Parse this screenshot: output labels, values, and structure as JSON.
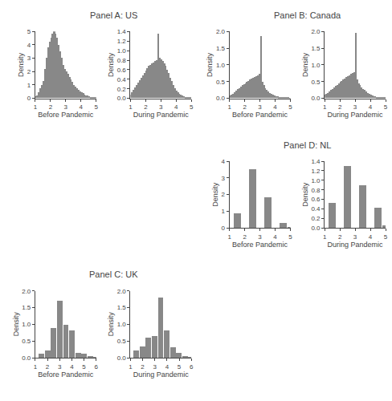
{
  "chart_data": [
    {
      "title": "Panel A: US",
      "charts": [
        {
          "type": "bar",
          "x_label": "Before Pandemic",
          "y_label": "Density",
          "color": "#888888",
          "grid": false,
          "xlim": [
            1,
            5
          ],
          "ylim": [
            0,
            5
          ],
          "xticks": [
            1,
            2,
            3,
            4,
            5
          ],
          "yticks": [
            0,
            1,
            2,
            3,
            4,
            5
          ],
          "x": [
            1.05,
            1.15,
            1.25,
            1.35,
            1.45,
            1.55,
            1.65,
            1.75,
            1.85,
            1.95,
            2.05,
            2.15,
            2.25,
            2.35,
            2.45,
            2.55,
            2.65,
            2.75,
            2.85,
            2.95,
            3.05,
            3.15,
            3.25,
            3.35,
            3.45,
            3.55,
            3.65,
            3.75,
            3.85,
            3.95,
            4.05,
            4.15,
            4.25,
            4.35,
            4.45,
            4.55,
            4.65,
            4.75,
            4.85,
            4.95
          ],
          "values": [
            0.12,
            0.22,
            0.45,
            0.75,
            1.0,
            1.3,
            2.2,
            3.0,
            3.8,
            4.2,
            4.5,
            4.8,
            5.0,
            4.8,
            4.5,
            4.0,
            3.5,
            3.0,
            2.5,
            2.2,
            2.0,
            1.8,
            1.6,
            1.4,
            1.2,
            1.0,
            0.85,
            0.72,
            0.6,
            0.5,
            0.42,
            0.35,
            0.28,
            0.22,
            0.17,
            0.13,
            0.1,
            0.07,
            0.05,
            0.03
          ]
        },
        {
          "type": "bar",
          "x_label": "During Pandemic",
          "y_label": "Density",
          "color": "#888888",
          "grid": false,
          "xlim": [
            1,
            5
          ],
          "ylim": [
            0,
            1.4
          ],
          "xticks": [
            1,
            2,
            3,
            4,
            5
          ],
          "yticks": [
            {
              "value": 0,
              "label": "0.0"
            },
            0.2,
            0.4,
            0.6,
            0.8,
            {
              "value": 1.0,
              "label": "1.0"
            },
            1.2,
            1.4
          ],
          "x": [
            1.05,
            1.15,
            1.25,
            1.35,
            1.45,
            1.55,
            1.65,
            1.75,
            1.85,
            1.95,
            2.05,
            2.15,
            2.25,
            2.35,
            2.45,
            2.55,
            2.65,
            2.75,
            2.85,
            2.95,
            3.05,
            3.15,
            3.25,
            3.35,
            3.45,
            3.55,
            3.65,
            3.75,
            3.85,
            3.95,
            4.05,
            4.15,
            4.25,
            4.35,
            4.45,
            4.55,
            4.65,
            4.75,
            4.85,
            4.95
          ],
          "values": [
            0.08,
            0.12,
            0.17,
            0.22,
            0.27,
            0.32,
            0.37,
            0.42,
            0.47,
            0.52,
            0.57,
            0.62,
            0.67,
            0.7,
            0.72,
            0.75,
            0.77,
            0.8,
            1.35,
            0.85,
            0.82,
            0.78,
            0.73,
            0.67,
            0.6,
            0.52,
            0.43,
            0.35,
            0.27,
            0.21,
            0.16,
            0.12,
            0.09,
            0.07,
            0.05,
            0.04,
            0.03,
            0.02,
            0.015,
            0.01
          ]
        }
      ]
    },
    {
      "title": "Panel B: Canada",
      "charts": [
        {
          "type": "bar",
          "x_label": "Before Pandemic",
          "y_label": "Density",
          "color": "#888888",
          "grid": false,
          "xlim": [
            1,
            5
          ],
          "ylim": [
            0,
            2
          ],
          "xticks": [
            1,
            2,
            3,
            4,
            5
          ],
          "yticks": [
            {
              "value": 0,
              "label": "0.0"
            },
            0.5,
            {
              "value": 1.0,
              "label": "1.0"
            },
            1.5,
            {
              "value": 2.0,
              "label": "2.0"
            }
          ],
          "x": [
            1.05,
            1.15,
            1.25,
            1.35,
            1.45,
            1.55,
            1.65,
            1.75,
            1.85,
            1.95,
            2.05,
            2.15,
            2.25,
            2.35,
            2.45,
            2.55,
            2.65,
            2.75,
            2.85,
            2.95,
            3.05,
            3.15,
            3.25,
            3.35,
            3.45,
            3.55,
            3.65,
            3.75,
            3.85,
            3.95,
            4.05,
            4.15,
            4.25,
            4.35,
            4.45,
            4.55,
            4.65,
            4.75,
            4.85,
            4.95
          ],
          "values": [
            0.08,
            0.1,
            0.13,
            0.18,
            0.22,
            0.27,
            0.3,
            0.35,
            0.38,
            0.42,
            0.45,
            0.48,
            0.52,
            0.55,
            0.58,
            0.6,
            0.62,
            0.65,
            0.68,
            0.72,
            1.85,
            0.48,
            0.38,
            0.3,
            0.24,
            0.19,
            0.15,
            0.12,
            0.1,
            0.08,
            0.06,
            0.05,
            0.04,
            0.03,
            0.025,
            0.02,
            0.015,
            0.01,
            0.008,
            0.005
          ]
        },
        {
          "type": "bar",
          "x_label": "During Pandemic",
          "y_label": "Density",
          "color": "#888888",
          "grid": false,
          "xlim": [
            1,
            5
          ],
          "ylim": [
            0,
            2
          ],
          "xticks": [
            1,
            2,
            3,
            4,
            5
          ],
          "yticks": [
            {
              "value": 0,
              "label": "0.0"
            },
            0.5,
            {
              "value": 1.0,
              "label": "1.0"
            },
            1.5,
            {
              "value": 2.0,
              "label": "2.0"
            }
          ],
          "x": [
            1.05,
            1.15,
            1.25,
            1.35,
            1.45,
            1.55,
            1.65,
            1.75,
            1.85,
            1.95,
            2.05,
            2.15,
            2.25,
            2.35,
            2.45,
            2.55,
            2.65,
            2.75,
            2.85,
            2.95,
            3.05,
            3.15,
            3.25,
            3.35,
            3.45,
            3.55,
            3.65,
            3.75,
            3.85,
            3.95,
            4.05,
            4.15,
            4.25,
            4.35,
            4.45,
            4.55,
            4.65,
            4.75,
            4.85,
            4.95
          ],
          "values": [
            0.1,
            0.13,
            0.16,
            0.2,
            0.24,
            0.28,
            0.32,
            0.36,
            0.4,
            0.44,
            0.48,
            0.52,
            0.55,
            0.58,
            0.62,
            0.65,
            0.68,
            0.72,
            0.75,
            0.78,
            1.95,
            0.55,
            0.45,
            0.38,
            0.32,
            0.28,
            0.24,
            0.2,
            0.16,
            0.13,
            0.1,
            0.08,
            0.06,
            0.05,
            0.04,
            0.03,
            0.025,
            0.02,
            0.015,
            0.01
          ]
        }
      ]
    },
    {
      "title": "Panel D: NL",
      "charts": [
        {
          "type": "bar",
          "x_label": "Before Pandemic",
          "y_label": "Density",
          "color": "#888888",
          "grid": false,
          "xlim": [
            1,
            5
          ],
          "ylim": [
            0,
            4
          ],
          "xticks": [
            1,
            2,
            3,
            4,
            5
          ],
          "yticks": [
            0,
            1,
            2,
            3,
            4
          ],
          "x": [
            1.5,
            2.5,
            3.5,
            4.5,
            5.0
          ],
          "values": [
            0.9,
            3.5,
            1.85,
            0.28,
            0.05
          ]
        },
        {
          "type": "bar",
          "x_label": "During Pandemic",
          "y_label": "Density",
          "color": "#888888",
          "grid": false,
          "xlim": [
            1,
            5
          ],
          "ylim": [
            0,
            1.4
          ],
          "xticks": [
            1,
            2,
            3,
            4,
            5
          ],
          "yticks": [
            {
              "value": 0,
              "label": "0.0"
            },
            0.2,
            0.4,
            0.6,
            0.8,
            {
              "value": 1.0,
              "label": "1.0"
            },
            1.2,
            1.4
          ],
          "x": [
            1.5,
            2.5,
            3.5,
            4.5,
            5.0
          ],
          "values": [
            0.52,
            1.3,
            0.9,
            0.42,
            0.06
          ]
        }
      ]
    },
    {
      "title": "Panel C: UK",
      "charts": [
        {
          "type": "bar",
          "x_label": "Before Pandemic",
          "y_label": "Density",
          "color": "#888888",
          "grid": false,
          "xlim": [
            1,
            6
          ],
          "ylim": [
            0,
            2
          ],
          "xticks": [
            1,
            2,
            3,
            4,
            5,
            6
          ],
          "yticks": [
            {
              "value": 0,
              "label": "0.0"
            },
            0.5,
            {
              "value": 1.0,
              "label": "1.0"
            },
            1.5,
            {
              "value": 2.0,
              "label": "2.0"
            }
          ],
          "x": [
            1.5,
            2.0,
            2.5,
            3.0,
            3.5,
            4.0,
            4.5,
            5.0,
            5.5,
            6.0
          ],
          "values": [
            0.12,
            0.22,
            0.9,
            1.72,
            1.0,
            0.82,
            0.15,
            0.12,
            0.05,
            0.02
          ]
        },
        {
          "type": "bar",
          "x_label": "During Pandemic",
          "y_label": "Density",
          "color": "#888888",
          "grid": false,
          "xlim": [
            1,
            6
          ],
          "ylim": [
            0,
            2
          ],
          "xticks": [
            1,
            2,
            3,
            4,
            5,
            6
          ],
          "yticks": [
            {
              "value": 0,
              "label": "0.0"
            },
            0.5,
            {
              "value": 1.0,
              "label": "1.0"
            },
            1.5,
            {
              "value": 2.0,
              "label": "2.0"
            }
          ],
          "x": [
            1.5,
            2.0,
            2.5,
            3.0,
            3.5,
            4.0,
            4.5,
            5.0,
            5.5,
            6.0
          ],
          "values": [
            0.22,
            0.35,
            0.6,
            0.65,
            1.82,
            0.82,
            0.32,
            0.15,
            0.05,
            0.02
          ]
        }
      ]
    }
  ]
}
